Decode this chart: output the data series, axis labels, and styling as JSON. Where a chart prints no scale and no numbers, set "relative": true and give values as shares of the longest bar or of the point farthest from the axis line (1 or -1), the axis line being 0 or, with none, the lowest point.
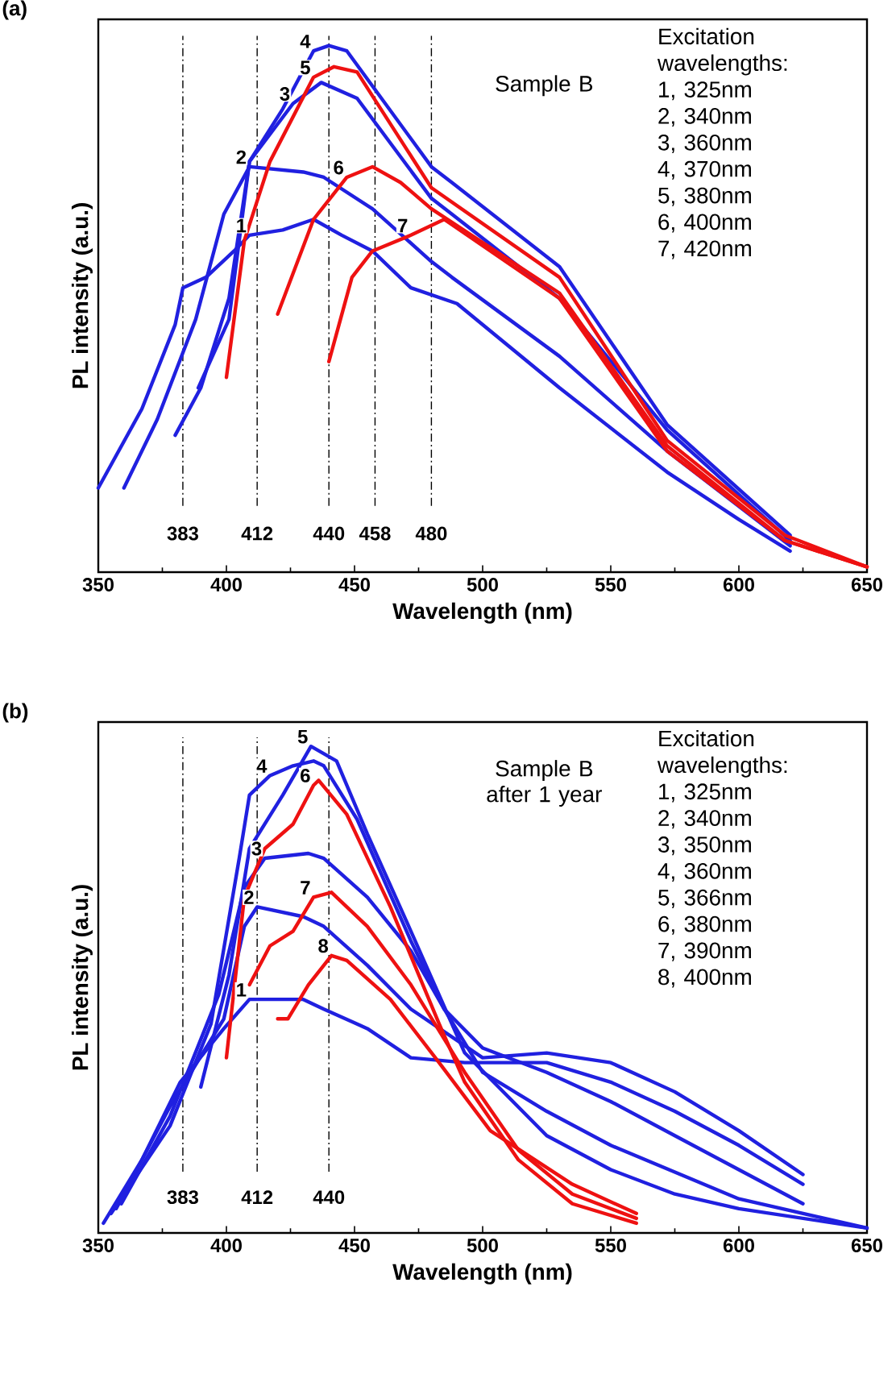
{
  "chart_data": [
    {
      "type": "line",
      "title": "(a)",
      "xlabel": "Wavelength (nm)",
      "ylabel": "PL intensity (a.u.)",
      "relative": true,
      "xlim": [
        350,
        650
      ],
      "xticks": [
        350,
        400,
        450,
        500,
        550,
        600,
        650
      ],
      "annotations": [
        "Sample B",
        "Excitation wavelengths:",
        "1, 325nm",
        "2, 340nm",
        "3, 360nm",
        "4, 370nm",
        "5, 380nm",
        "6, 400nm",
        "7, 420nm"
      ],
      "ref_lines": [
        {
          "axis": "x",
          "value": 383,
          "label": "383"
        },
        {
          "axis": "x",
          "value": 412,
          "label": "412"
        },
        {
          "axis": "x",
          "value": 440,
          "label": "440"
        },
        {
          "axis": "x",
          "value": 458,
          "label": "458"
        },
        {
          "axis": "x",
          "value": 480,
          "label": "480"
        }
      ],
      "series": [
        {
          "name": "1",
          "color": "#2020e0",
          "x": [
            350,
            367,
            380,
            383,
            392,
            403,
            409,
            422,
            434,
            445,
            457,
            472,
            490,
            530,
            572,
            600,
            620
          ],
          "values": [
            0.16,
            0.31,
            0.47,
            0.54,
            0.56,
            0.61,
            0.64,
            0.65,
            0.67,
            0.64,
            0.61,
            0.54,
            0.51,
            0.35,
            0.19,
            0.1,
            0.04
          ]
        },
        {
          "name": "2",
          "color": "#2020e0",
          "x": [
            360,
            373,
            388,
            399,
            409,
            430,
            438,
            457,
            480,
            488,
            530,
            572,
            620
          ],
          "values": [
            0.16,
            0.29,
            0.48,
            0.68,
            0.77,
            0.76,
            0.75,
            0.69,
            0.59,
            0.56,
            0.41,
            0.23,
            0.05
          ]
        },
        {
          "name": "3",
          "color": "#2020e0",
          "x": [
            380,
            390,
            401,
            409,
            426,
            437,
            451,
            480,
            488,
            530,
            572,
            620
          ],
          "values": [
            0.26,
            0.35,
            0.52,
            0.78,
            0.89,
            0.93,
            0.9,
            0.71,
            0.68,
            0.52,
            0.27,
            0.06
          ]
        },
        {
          "name": "4",
          "color": "#2020e0",
          "x": [
            389,
            401,
            409,
            422,
            434,
            440,
            447,
            480,
            488,
            530,
            572,
            620
          ],
          "values": [
            0.35,
            0.48,
            0.78,
            0.88,
            0.99,
            1.0,
            0.99,
            0.77,
            0.74,
            0.58,
            0.28,
            0.07
          ]
        },
        {
          "name": "5",
          "color": "#ee1111",
          "x": [
            400,
            407,
            417,
            434,
            442,
            451,
            480,
            530,
            572,
            618,
            650
          ],
          "values": [
            0.37,
            0.63,
            0.78,
            0.94,
            0.96,
            0.95,
            0.73,
            0.56,
            0.25,
            0.07,
            0.01
          ]
        },
        {
          "name": "6",
          "color": "#ee1111",
          "x": [
            420,
            434,
            447,
            457,
            468,
            480,
            530,
            572,
            618,
            650
          ],
          "values": [
            0.49,
            0.67,
            0.75,
            0.77,
            0.74,
            0.69,
            0.53,
            0.24,
            0.06,
            0.01
          ]
        },
        {
          "name": "7",
          "color": "#ee1111",
          "x": [
            440,
            449,
            457,
            472,
            485,
            530,
            572,
            618,
            650
          ],
          "values": [
            0.4,
            0.56,
            0.61,
            0.64,
            0.67,
            0.52,
            0.23,
            0.06,
            0.01
          ]
        }
      ]
    },
    {
      "type": "line",
      "title": "(b)",
      "xlabel": "Wavelength (nm)",
      "ylabel": "PL intensity (a.u.)",
      "relative": true,
      "xlim": [
        350,
        650
      ],
      "xticks": [
        350,
        400,
        450,
        500,
        550,
        600,
        650
      ],
      "annotations": [
        "Sample B after 1 year",
        "Excitation wavelengths:",
        "1, 325nm",
        "2, 340nm",
        "3, 350nm",
        "4, 360nm",
        "5, 366nm",
        "6, 380nm",
        "7, 390nm",
        "8, 400nm"
      ],
      "ref_lines": [
        {
          "axis": "x",
          "value": 383,
          "label": "383"
        },
        {
          "axis": "x",
          "value": 412,
          "label": "412"
        },
        {
          "axis": "x",
          "value": 440,
          "label": "440"
        }
      ],
      "series": [
        {
          "name": "1",
          "color": "#2020e0",
          "x": [
            352,
            367,
            382,
            399,
            409,
            430,
            438,
            455,
            472,
            493,
            525,
            550,
            575,
            600,
            625
          ],
          "values": [
            0.02,
            0.15,
            0.31,
            0.42,
            0.48,
            0.48,
            0.46,
            0.42,
            0.36,
            0.35,
            0.35,
            0.31,
            0.25,
            0.18,
            0.1
          ]
        },
        {
          "name": "2",
          "color": "#2020e0",
          "x": [
            357,
            378,
            399,
            407,
            412,
            430,
            438,
            455,
            472,
            500,
            525,
            550,
            575,
            600,
            625
          ],
          "values": [
            0.05,
            0.26,
            0.44,
            0.63,
            0.67,
            0.65,
            0.63,
            0.55,
            0.46,
            0.36,
            0.37,
            0.35,
            0.29,
            0.21,
            0.12
          ]
        },
        {
          "name": "3",
          "color": "#2020e0",
          "x": [
            359,
            378,
            397,
            407,
            415,
            432,
            438,
            455,
            472,
            485,
            500,
            525,
            550,
            575,
            600,
            625
          ],
          "values": [
            0.06,
            0.24,
            0.49,
            0.71,
            0.77,
            0.78,
            0.77,
            0.69,
            0.58,
            0.46,
            0.38,
            0.33,
            0.27,
            0.2,
            0.13,
            0.06
          ]
        },
        {
          "name": "4",
          "color": "#2020e0",
          "x": [
            355,
            378,
            394,
            405,
            409,
            417,
            426,
            434,
            438,
            451,
            472,
            485,
            500,
            525,
            550,
            600,
            650
          ],
          "values": [
            0.04,
            0.22,
            0.43,
            0.77,
            0.9,
            0.94,
            0.96,
            0.97,
            0.96,
            0.85,
            0.6,
            0.46,
            0.33,
            0.25,
            0.18,
            0.07,
            0.01
          ]
        },
        {
          "name": "5",
          "color": "#2020e0",
          "x": [
            390,
            401,
            409,
            422,
            433,
            443,
            455,
            472,
            493,
            525,
            550,
            575,
            600,
            650
          ],
          "values": [
            0.3,
            0.53,
            0.79,
            0.9,
            1.0,
            0.97,
            0.82,
            0.62,
            0.37,
            0.2,
            0.13,
            0.08,
            0.05,
            0.01
          ]
        },
        {
          "name": "6",
          "color": "#ee1111",
          "x": [
            400,
            407,
            415,
            426,
            434,
            436,
            447,
            464,
            483,
            493,
            514,
            535,
            560
          ],
          "values": [
            0.36,
            0.69,
            0.79,
            0.84,
            0.92,
            0.93,
            0.86,
            0.67,
            0.43,
            0.31,
            0.15,
            0.06,
            0.02
          ]
        },
        {
          "name": "7",
          "color": "#ee1111",
          "x": [
            409,
            417,
            426,
            434,
            441,
            455,
            472,
            493,
            514,
            535,
            560
          ],
          "values": [
            0.51,
            0.59,
            0.62,
            0.69,
            0.7,
            0.63,
            0.51,
            0.33,
            0.17,
            0.08,
            0.03
          ]
        },
        {
          "name": "8",
          "color": "#ee1111",
          "x": [
            420,
            424,
            432,
            441,
            447,
            464,
            483,
            503,
            535,
            560
          ],
          "values": [
            0.44,
            0.44,
            0.51,
            0.57,
            0.56,
            0.48,
            0.35,
            0.21,
            0.1,
            0.04
          ]
        }
      ]
    }
  ]
}
